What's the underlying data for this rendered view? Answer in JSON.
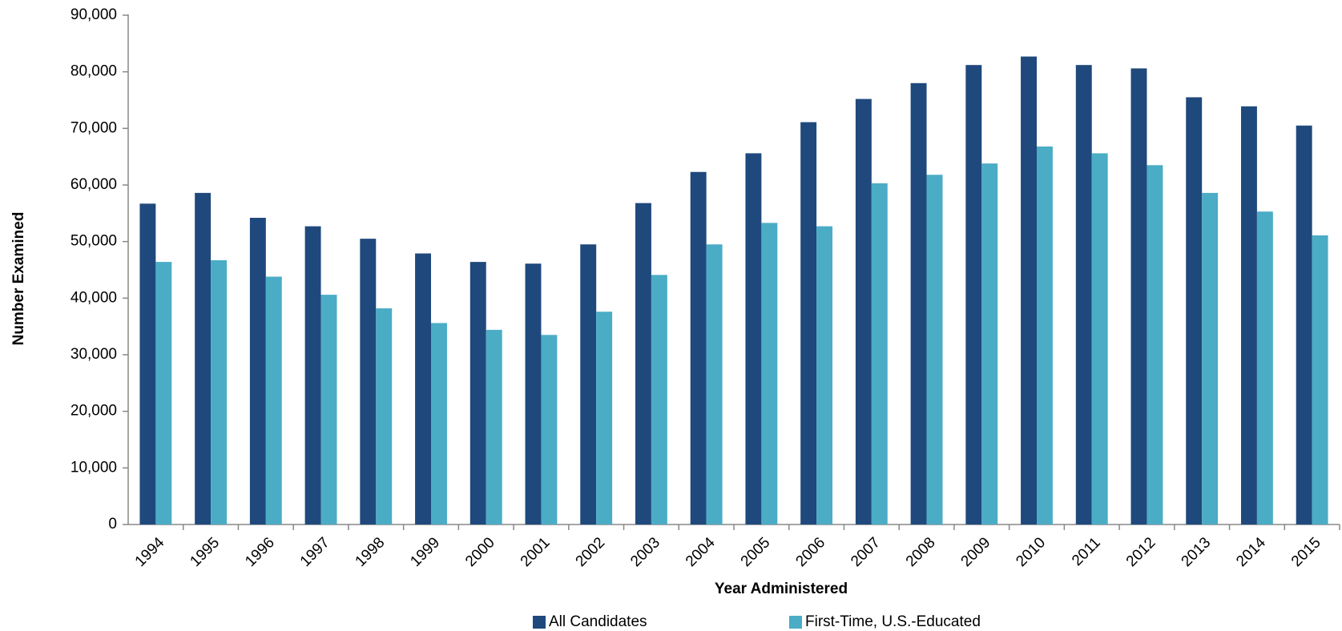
{
  "chart_data": {
    "type": "bar",
    "categories": [
      "1994",
      "1995",
      "1996",
      "1997",
      "1998",
      "1999",
      "2000",
      "2001",
      "2002",
      "2003",
      "2004",
      "2005",
      "2006",
      "2007",
      "2008",
      "2009",
      "2010",
      "2011",
      "2012",
      "2013",
      "2014",
      "2015"
    ],
    "series": [
      {
        "name": "All Candidates",
        "color": "#1f497d",
        "values": [
          56700,
          58600,
          54200,
          52700,
          50500,
          47900,
          46400,
          46100,
          49500,
          56800,
          62300,
          65600,
          71100,
          75200,
          78000,
          81200,
          82700,
          81200,
          80600,
          75500,
          73900,
          70500
        ]
      },
      {
        "name": "First-Time, U.S.-Educated",
        "color": "#4bacc6",
        "values": [
          46400,
          46700,
          43800,
          40600,
          38200,
          35600,
          34400,
          33500,
          37600,
          44100,
          49500,
          53300,
          52700,
          60300,
          61800,
          63800,
          66800,
          65600,
          63500,
          58600,
          55300,
          51100
        ]
      }
    ],
    "xlabel": "Year Administered",
    "ylabel": "Number Examined",
    "ylim": [
      0,
      90000
    ],
    "yticks": [
      0,
      {
        "value": 10000,
        "label": "10,000"
      },
      {
        "value": 20000,
        "label": "20,000"
      },
      {
        "value": 30000,
        "label": "30,000"
      },
      {
        "value": 40000,
        "label": "40,000"
      },
      {
        "value": 50000,
        "label": "50,000"
      },
      {
        "value": 60000,
        "label": "60,000"
      },
      {
        "value": 70000,
        "label": "70,000"
      },
      {
        "value": 80000,
        "label": "80,000"
      },
      {
        "value": 90000,
        "label": "90,000"
      }
    ],
    "grid": false,
    "legend": "bottom"
  }
}
